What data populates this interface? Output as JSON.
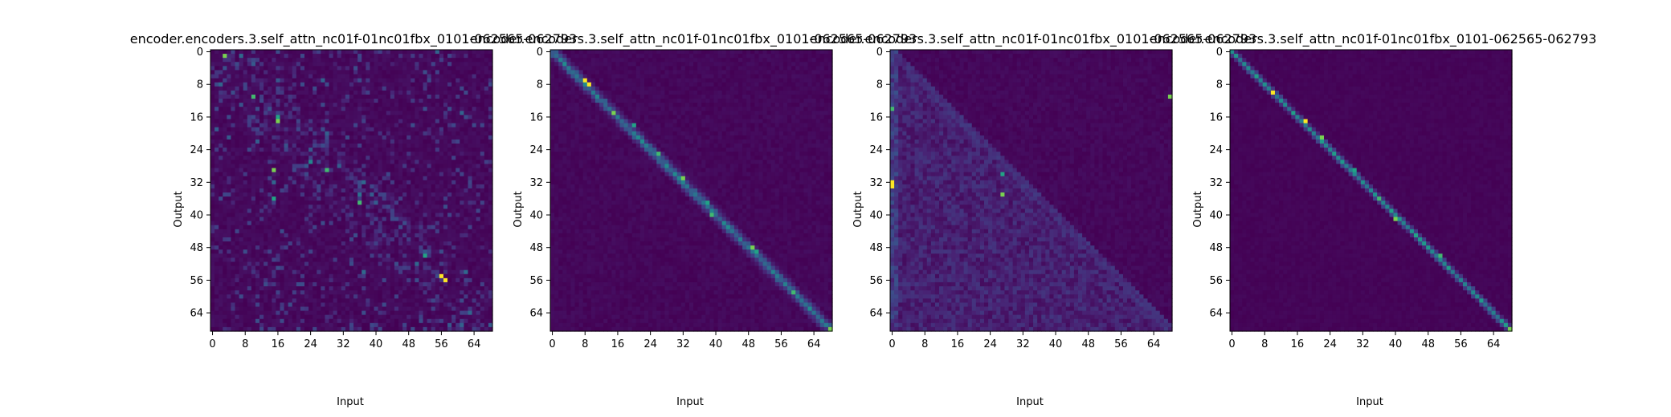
{
  "chart_data": [
    {
      "type": "heatmap",
      "title": "encoder.encoders.3.self_attn_nc01f-01nc01fbx_0101-062565-062793",
      "xlabel": "Input",
      "ylabel": "Output",
      "xticks": [
        0,
        8,
        16,
        24,
        32,
        40,
        48,
        56,
        64
      ],
      "yticks": [
        0,
        8,
        16,
        24,
        32,
        40,
        48,
        56,
        64
      ],
      "size": 69,
      "colormap": "viridis",
      "pattern": "scattered",
      "hotspots": [
        [
          56,
          55
        ],
        [
          57,
          56
        ],
        [
          16,
          17
        ],
        [
          16,
          16
        ],
        [
          36,
          37
        ],
        [
          15,
          29
        ],
        [
          15,
          36
        ],
        [
          10,
          11
        ],
        [
          3,
          1
        ],
        [
          52,
          50
        ],
        [
          28,
          29
        ]
      ]
    },
    {
      "type": "heatmap",
      "title": "encoder.encoders.3.self_attn_nc01f-01nc01fbx_0101-062565-062793",
      "xlabel": "Input",
      "ylabel": "Output",
      "xticks": [
        0,
        8,
        16,
        24,
        32,
        40,
        48,
        56,
        64
      ],
      "yticks": [
        0,
        8,
        16,
        24,
        32,
        40,
        48,
        56,
        64
      ],
      "size": 69,
      "colormap": "viridis",
      "pattern": "diagonal",
      "hotspots": [
        [
          8,
          7
        ],
        [
          9,
          8
        ],
        [
          15,
          15
        ],
        [
          20,
          18
        ],
        [
          26,
          25
        ],
        [
          32,
          31
        ],
        [
          38,
          37
        ],
        [
          39,
          40
        ],
        [
          49,
          48
        ],
        [
          50,
          49
        ],
        [
          59,
          59
        ],
        [
          68,
          68
        ]
      ]
    },
    {
      "type": "heatmap",
      "title": "encoder.encoders.3.self_attn_nc01f-01nc01fbx_0101-062565-062793",
      "xlabel": "Input",
      "ylabel": "Output",
      "xticks": [
        0,
        8,
        16,
        24,
        32,
        40,
        48,
        56,
        64
      ],
      "yticks": [
        0,
        8,
        16,
        24,
        32,
        40,
        48,
        56,
        64
      ],
      "size": 69,
      "colormap": "viridis",
      "pattern": "lower-triangle",
      "hotspots": [
        [
          0,
          32
        ],
        [
          0,
          33
        ],
        [
          27,
          35
        ],
        [
          27,
          30
        ],
        [
          0,
          14
        ],
        [
          68,
          11
        ]
      ]
    },
    {
      "type": "heatmap",
      "title": "encoder.encoders.3.self_attn_nc01f-01nc01fbx_0101-062565-062793",
      "xlabel": "Input",
      "ylabel": "Output",
      "xticks": [
        0,
        8,
        16,
        24,
        32,
        40,
        48,
        56,
        64
      ],
      "yticks": [
        0,
        8,
        16,
        24,
        32,
        40,
        48,
        56,
        64
      ],
      "size": 69,
      "colormap": "viridis",
      "pattern": "sharp-diagonal",
      "hotspots": [
        [
          10,
          10
        ],
        [
          18,
          17
        ],
        [
          22,
          21
        ],
        [
          30,
          29
        ],
        [
          36,
          36
        ],
        [
          40,
          41
        ],
        [
          45,
          45
        ],
        [
          51,
          50
        ],
        [
          68,
          68
        ]
      ]
    }
  ]
}
